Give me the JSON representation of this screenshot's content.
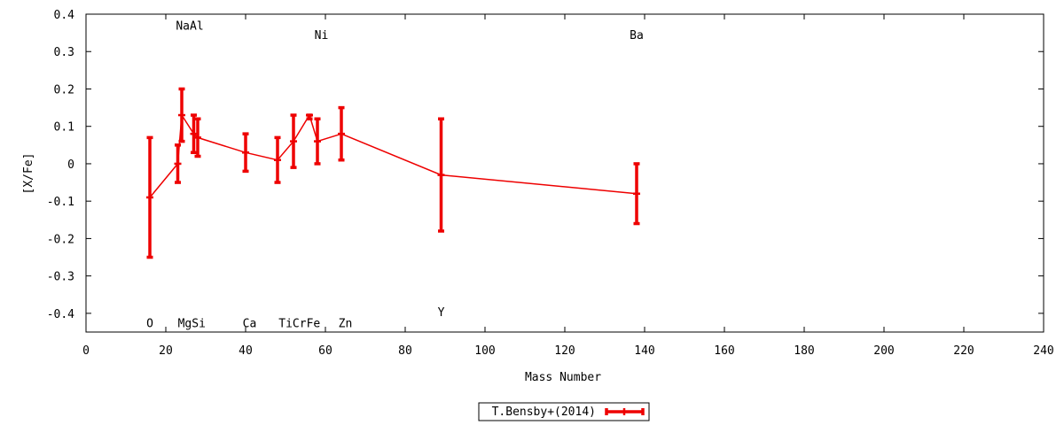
{
  "chart_data": {
    "type": "line",
    "title": "",
    "xlabel": "Mass Number",
    "ylabel": "[X/Fe]",
    "xlim": [
      0,
      240
    ],
    "ylim": [
      -0.45,
      0.4
    ],
    "xticks": [
      0,
      20,
      40,
      60,
      80,
      100,
      120,
      140,
      160,
      180,
      200,
      220,
      240
    ],
    "xtick_labels": [
      "0",
      "20",
      "40",
      "60",
      "80",
      "100",
      "120",
      "140",
      "160",
      "180",
      "200",
      "220",
      "240"
    ],
    "yticks": [
      0.4,
      0.3,
      0.2,
      0.1,
      0,
      -0.1,
      -0.2,
      -0.3,
      -0.4
    ],
    "ytick_labels": [
      "0.4",
      "0.3",
      "0.2",
      "0.1",
      "0",
      "-0.1",
      "-0.2",
      "-0.3",
      "-0.4"
    ],
    "grid": false,
    "legend_position": "bottom-center",
    "color": "#ee0000",
    "series": [
      {
        "name": "T.Bensby+(2014)",
        "points": [
          {
            "x": 16,
            "y": -0.09,
            "lo": -0.25,
            "hi": 0.07
          },
          {
            "x": 23,
            "y": 0.0,
            "lo": -0.05,
            "hi": 0.05
          },
          {
            "x": 24,
            "y": 0.13,
            "lo": 0.06,
            "hi": 0.2
          },
          {
            "x": 27,
            "y": 0.08,
            "lo": 0.03,
            "hi": 0.13
          },
          {
            "x": 28,
            "y": 0.07,
            "lo": 0.02,
            "hi": 0.12
          },
          {
            "x": 40,
            "y": 0.03,
            "lo": -0.02,
            "hi": 0.08
          },
          {
            "x": 48,
            "y": 0.01,
            "lo": -0.05,
            "hi": 0.07
          },
          {
            "x": 52,
            "y": 0.06,
            "lo": -0.01,
            "hi": 0.13
          },
          {
            "x": 56,
            "y": 0.13,
            "lo": 0.12,
            "hi": 0.13
          },
          {
            "x": 58,
            "y": 0.06,
            "lo": 0.0,
            "hi": 0.12
          },
          {
            "x": 64,
            "y": 0.08,
            "lo": 0.01,
            "hi": 0.15
          },
          {
            "x": 89,
            "y": -0.03,
            "lo": -0.18,
            "hi": 0.12
          },
          {
            "x": 138,
            "y": -0.08,
            "lo": -0.16,
            "hi": 0.0
          }
        ]
      }
    ],
    "annotations": [
      {
        "text": "NaAl",
        "x": 26,
        "y": 0.37
      },
      {
        "text": "Ni",
        "x": 59,
        "y": 0.345
      },
      {
        "text": "Ba",
        "x": 138,
        "y": 0.345
      },
      {
        "text": "Y",
        "x": 89,
        "y": -0.395
      },
      {
        "text": "O",
        "x": 16,
        "y": -0.425
      },
      {
        "text": "MgSi",
        "x": 26.5,
        "y": -0.425
      },
      {
        "text": "Ca",
        "x": 41,
        "y": -0.425
      },
      {
        "text": "TiCrFe",
        "x": 53.5,
        "y": -0.425
      },
      {
        "text": "Zn",
        "x": 65,
        "y": -0.425
      }
    ]
  }
}
